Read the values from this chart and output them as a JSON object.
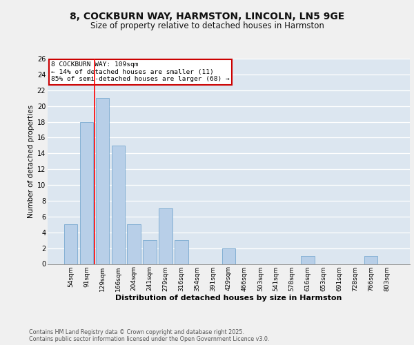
{
  "title1": "8, COCKBURN WAY, HARMSTON, LINCOLN, LN5 9GE",
  "title2": "Size of property relative to detached houses in Harmston",
  "xlabel": "Distribution of detached houses by size in Harmston",
  "ylabel": "Number of detached properties",
  "categories": [
    "54sqm",
    "91sqm",
    "129sqm",
    "166sqm",
    "204sqm",
    "241sqm",
    "279sqm",
    "316sqm",
    "354sqm",
    "391sqm",
    "429sqm",
    "466sqm",
    "503sqm",
    "541sqm",
    "578sqm",
    "616sqm",
    "653sqm",
    "691sqm",
    "728sqm",
    "766sqm",
    "803sqm"
  ],
  "values": [
    5,
    18,
    21,
    15,
    5,
    3,
    7,
    3,
    0,
    0,
    2,
    0,
    0,
    0,
    0,
    1,
    0,
    0,
    0,
    1,
    0
  ],
  "bar_color": "#b8cfe8",
  "bar_edge_color": "#7aaad0",
  "red_line_x": 1.5,
  "annotation_title": "8 COCKBURN WAY: 109sqm",
  "annotation_line1": "← 14% of detached houses are smaller (11)",
  "annotation_line2": "85% of semi-detached houses are larger (68) →",
  "annotation_box_color": "#ffffff",
  "annotation_box_edge": "#cc0000",
  "ylim": [
    0,
    26
  ],
  "yticks": [
    0,
    2,
    4,
    6,
    8,
    10,
    12,
    14,
    16,
    18,
    20,
    22,
    24,
    26
  ],
  "background_color": "#dce6f0",
  "fig_background": "#f0f0f0",
  "footer1": "Contains HM Land Registry data © Crown copyright and database right 2025.",
  "footer2": "Contains public sector information licensed under the Open Government Licence v3.0.",
  "grid_color": "#ffffff",
  "title_fontsize": 10,
  "subtitle_fontsize": 8.5,
  "ylabel_fontsize": 7.5,
  "xlabel_fontsize": 8,
  "ytick_fontsize": 7,
  "xtick_fontsize": 6.5,
  "annotation_fontsize": 6.8,
  "footer_fontsize": 5.8
}
